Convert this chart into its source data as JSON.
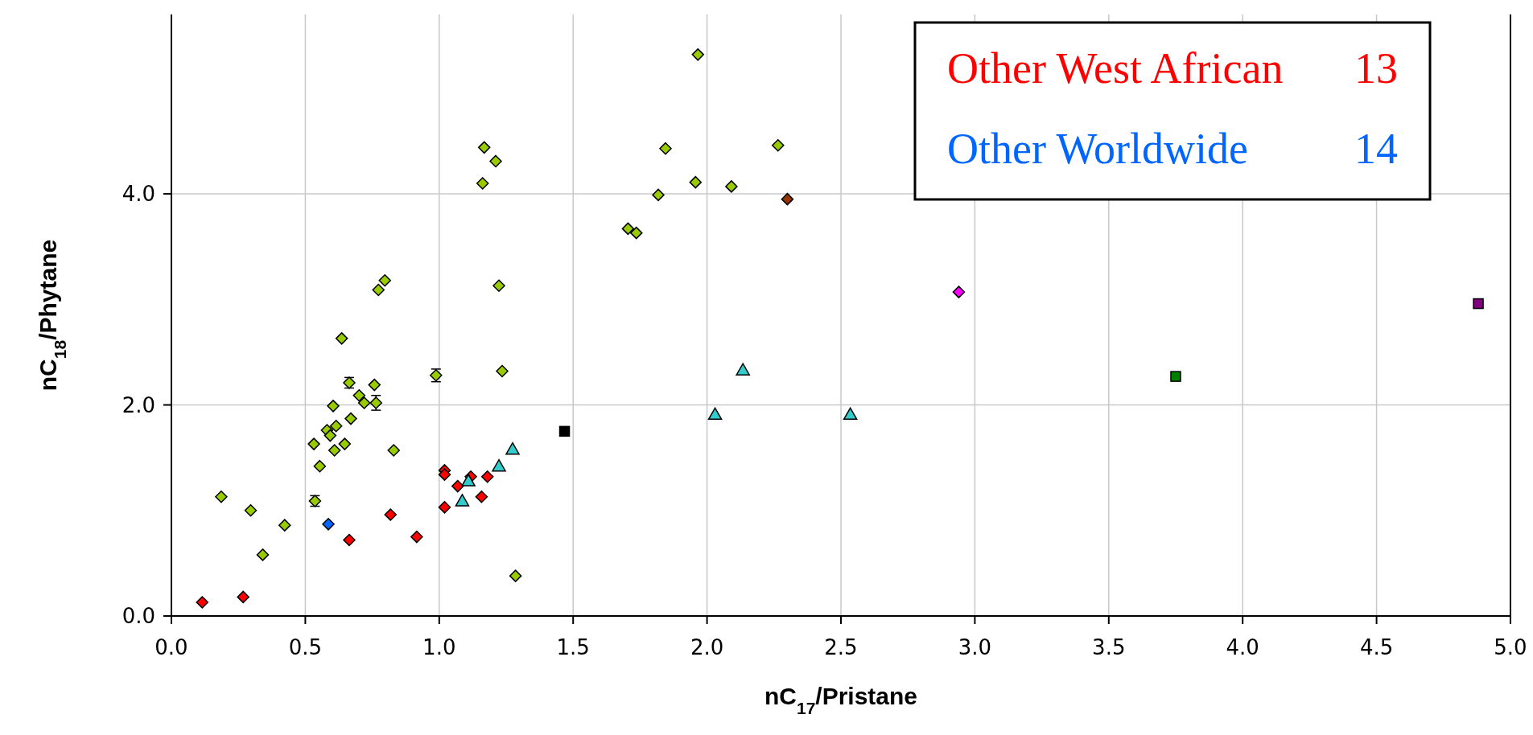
{
  "chart_data": {
    "type": "scatter",
    "xlabel": "nC$_{17}$/Pristane",
    "ylabel": "nC$_{18}$/Phytane",
    "xlim": [
      0,
      5
    ],
    "xticks": [
      {
        "value": 0,
        "label": "0.0"
      },
      {
        "value": 0.5,
        "label": "0.5"
      },
      {
        "value": 1,
        "label": "1.0"
      },
      {
        "value": 1.5,
        "label": "1.5"
      },
      {
        "value": 2,
        "label": "2.0"
      },
      {
        "value": 2.5,
        "label": "2.5"
      },
      {
        "value": 3,
        "label": "3.0"
      },
      {
        "value": 3.5,
        "label": "3.5"
      },
      {
        "value": 4,
        "label": "4.0"
      },
      {
        "value": 4.5,
        "label": "4.5"
      },
      {
        "value": 5,
        "label": "5.0"
      }
    ],
    "ylim": [
      0,
      5.7
    ],
    "yticks": [
      {
        "value": 0,
        "label": "0.0"
      },
      {
        "value": 2,
        "label": "2.0"
      },
      {
        "value": 4,
        "label": "4.0"
      }
    ],
    "grid": true,
    "legend": "top right",
    "annotations": [
      "13",
      "14"
    ],
    "series": [
      {
        "color": "#99cc00",
        "marker": "diamond",
        "x": [
          0.797,
          0.773,
          0.636,
          1.223,
          0.988,
          1.235,
          0.664,
          0.758,
          0.701,
          0.72,
          0.764,
          0.604,
          0.67,
          0.615,
          0.581,
          0.593,
          0.532,
          0.647,
          0.609,
          0.83,
          0.554,
          0.536,
          0.186,
          0.296,
          0.423,
          0.341,
          1.285,
          1.966,
          1.168,
          1.211,
          1.162,
          1.845,
          1.957,
          2.091,
          1.818,
          1.705,
          1.736,
          2.265
        ],
        "values": [
          3.18,
          3.09,
          2.63,
          3.13,
          2.28,
          2.32,
          2.21,
          2.19,
          2.09,
          2.02,
          2.02,
          1.99,
          1.87,
          1.8,
          1.76,
          1.71,
          1.63,
          1.63,
          1.57,
          1.57,
          1.42,
          1.09,
          1.13,
          1,
          0.86,
          0.58,
          0.38,
          5.32,
          4.44,
          4.31,
          4.1,
          4.43,
          4.11,
          4.07,
          3.99,
          3.67,
          3.63,
          4.46
        ],
        "errors": [
          null,
          null,
          null,
          null,
          0.06,
          null,
          0.05,
          null,
          null,
          null,
          0.07,
          null,
          null,
          null,
          null,
          null,
          null,
          null,
          null,
          null,
          null,
          0.05,
          null,
          null,
          null,
          null,
          null,
          null,
          null,
          null,
          null,
          null,
          null,
          null,
          null,
          null,
          null,
          null
        ]
      },
      {
        "name": "Other West African",
        "color": "#ff0000",
        "marker": "diamond",
        "x": [
          0.115,
          0.268,
          0.664,
          0.818,
          0.916,
          1.02,
          1.02,
          1.02,
          1.069,
          1.118,
          1.158,
          1.18
        ],
        "values": [
          0.13,
          0.18,
          0.72,
          0.96,
          0.75,
          1.38,
          1.34,
          1.03,
          1.23,
          1.32,
          1.13,
          1.32
        ]
      },
      {
        "name": "Other Worldwide",
        "color": "#0066ff",
        "marker": "diamond",
        "x": [
          0.586
        ],
        "values": [
          0.87
        ]
      },
      {
        "color": "#33cccc",
        "marker": "triangle",
        "x": [
          1.109,
          1.086,
          1.223,
          1.274,
          2.134,
          2.03,
          2.535
        ],
        "values": [
          1.28,
          1.09,
          1.42,
          1.58,
          2.33,
          1.91,
          1.91
        ]
      },
      {
        "color": "#000000",
        "marker": "square",
        "x": [
          1.468
        ],
        "values": [
          1.75
        ]
      },
      {
        "color": "#ff00ff",
        "marker": "diamond",
        "x": [
          2.94
        ],
        "values": [
          3.07
        ]
      },
      {
        "color": "#993300",
        "marker": "diamond",
        "x": [
          2.3
        ],
        "values": [
          3.95
        ]
      },
      {
        "color": "#008000",
        "marker": "square",
        "x": [
          3.75
        ],
        "values": [
          2.27
        ]
      },
      {
        "color": "#800080",
        "marker": "square",
        "x": [
          4.88
        ],
        "values": [
          2.96
        ]
      }
    ]
  }
}
